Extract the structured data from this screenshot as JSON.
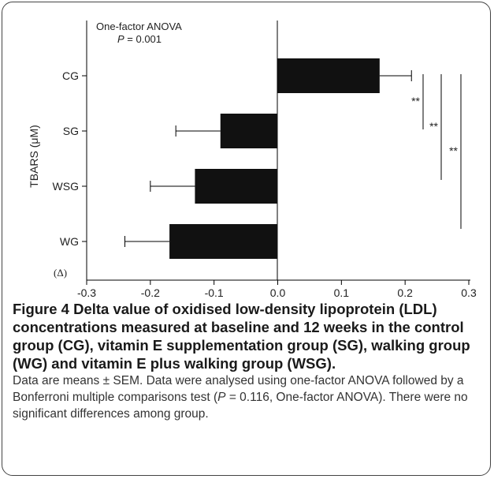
{
  "chart_data": {
    "type": "bar",
    "orientation": "horizontal",
    "categories": [
      "CG",
      "SG",
      "WSG",
      "WG"
    ],
    "values": [
      0.16,
      -0.09,
      -0.13,
      -0.17
    ],
    "errors": [
      0.05,
      0.07,
      0.07,
      0.07
    ],
    "xlim": [
      -0.3,
      0.3
    ],
    "x_ticks": [
      "-0.3",
      "-0.2",
      "-0.1",
      "0.0",
      "0.1",
      "0.2",
      "0.3"
    ],
    "ylabel": "TBARS (μM)",
    "delta_label": "(Δ)",
    "annotation": {
      "line1": "One-factor ANOVA",
      "p_label": "P",
      "p_value": " = 0.001"
    },
    "significance": [
      {
        "from": "CG",
        "to": "SG",
        "label": "**"
      },
      {
        "from": "CG",
        "to": "WSG",
        "label": "**"
      },
      {
        "from": "CG",
        "to": "WG",
        "label": "**"
      }
    ],
    "bar_color": "#111111",
    "grid": false
  },
  "caption": {
    "title": "Figure 4 Delta value of oxidised low-density lipoprotein (LDL) concentrations measured at baseline and 12 weeks in the control group (CG), vitamin E supplementation group (SG), walking group (WG) and vitamin E plus walking group (WSG).",
    "body_1": " Data are means ± SEM. Data were analysed using one-factor ANOVA followed by a Bonferroni multiple comparisons test (",
    "body_p": "P",
    "body_2": " = 0.116, One-factor ANOVA). There were no significant differences among group."
  }
}
